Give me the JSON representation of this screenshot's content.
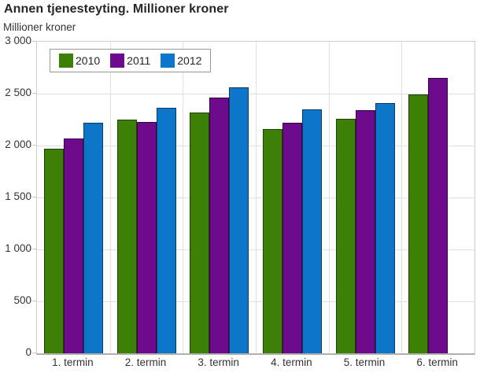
{
  "chart_data": {
    "type": "bar",
    "title": "Annen tjenesteyting. Millioner kroner",
    "ylabel": "Millioner kroner",
    "xlabel": "",
    "categories": [
      "1. termin",
      "2. termin",
      "3. termin",
      "4. termin",
      "5. termin",
      "6. termin"
    ],
    "series": [
      {
        "name": "2010",
        "color": "#3C8106",
        "values": [
          1970,
          2250,
          2320,
          2160,
          2260,
          2490
        ]
      },
      {
        "name": "2011",
        "color": "#6D0B8C",
        "values": [
          2070,
          2230,
          2460,
          2220,
          2340,
          2650
        ]
      },
      {
        "name": "2012",
        "color": "#0E76C8",
        "values": [
          2220,
          2360,
          2560,
          2350,
          2410,
          null
        ]
      }
    ],
    "ylim": [
      0,
      3000
    ],
    "ytick_step": 500,
    "ytick_labels": [
      "0",
      "500",
      "1 000",
      "1 500",
      "2 000",
      "2 500",
      "3 000"
    ],
    "grid": true,
    "legend_position": "top-left-inset",
    "plot_border_color": "#cccccc",
    "gridline_color": "#e0e0e0"
  }
}
